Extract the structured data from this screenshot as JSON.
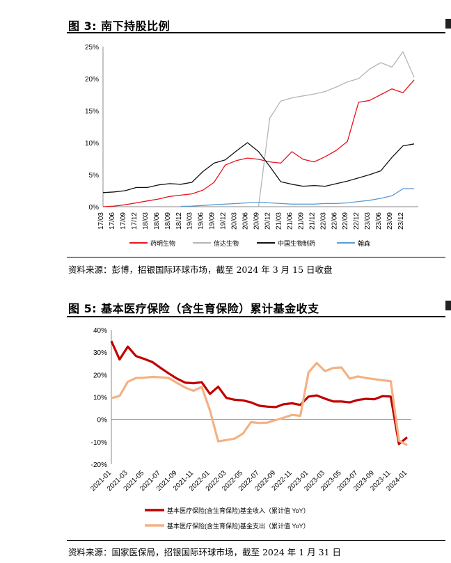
{
  "fig3": {
    "title": "图 3: 南下持股比例",
    "source": "资料来源：彭博，招银国际环球市场，截至 2024 年 3 月 15 日收盘"
  },
  "fig5": {
    "title": "图 5: 基本医疗保险（含生育保险）累计基金收支",
    "source": "资料来源：国家医保局，招银国际环球市场，截至 2024 年 1 月 31 日"
  },
  "chart_data": [
    {
      "type": "line",
      "title": "",
      "ylim": [
        0,
        25
      ],
      "yticks": [
        "0%",
        "5%",
        "10%",
        "15%",
        "20%",
        "25%"
      ],
      "x": [
        "17/03",
        "17/06",
        "17/09",
        "17/12",
        "18/03",
        "18/06",
        "18/09",
        "18/12",
        "19/03",
        "19/06",
        "19/09",
        "19/12",
        "20/03",
        "20/06",
        "20/09",
        "20/12",
        "21/03",
        "21/06",
        "21/09",
        "21/12",
        "22/03",
        "22/06",
        "22/09",
        "22/12",
        "23/03",
        "23/06",
        "23/09",
        "23/12",
        "24/03"
      ],
      "xticks": [
        "17/03",
        "17/06",
        "17/09",
        "17/12",
        "18/03",
        "18/06",
        "18/09",
        "18/12",
        "19/03",
        "19/06",
        "19/09",
        "19/12",
        "20/03",
        "20/06",
        "20/09",
        "20/12",
        "21/03",
        "21/06",
        "21/09",
        "21/12",
        "22/03",
        "22/06",
        "22/09",
        "22/12",
        "23/03",
        "23/06",
        "23/09",
        "23/12"
      ],
      "legend_position": "bottom",
      "series": [
        {
          "name": "药明生物",
          "color": "#e8121b",
          "values": [
            0,
            0.1,
            0.3,
            0.6,
            0.9,
            1.2,
            1.6,
            1.8,
            2.0,
            2.6,
            3.8,
            6.5,
            7.2,
            7.6,
            7.4,
            7.0,
            6.8,
            8.6,
            7.4,
            7.0,
            7.8,
            8.8,
            10.2,
            16.3,
            16.6,
            17.5,
            18.4,
            17.8,
            19.8
          ]
        },
        {
          "name": "信达生物",
          "color": "#b5b5b5",
          "values": [
            null,
            null,
            null,
            null,
            null,
            null,
            null,
            null,
            null,
            null,
            null,
            null,
            null,
            null,
            0,
            13.8,
            16.5,
            17.0,
            17.3,
            17.6,
            18.0,
            18.7,
            19.5,
            20.0,
            21.5,
            22.5,
            21.8,
            24.2,
            20.2
          ]
        },
        {
          "name": "中国生物制药",
          "color": "#111111",
          "values": [
            2.2,
            2.3,
            2.5,
            3.0,
            3.0,
            3.4,
            3.6,
            3.5,
            3.8,
            5.5,
            6.8,
            7.3,
            8.7,
            10.0,
            8.6,
            6.3,
            3.9,
            3.5,
            3.2,
            3.3,
            3.2,
            3.6,
            4.0,
            4.5,
            5.0,
            5.6,
            7.7,
            9.5,
            9.8
          ]
        },
        {
          "name": "翰森",
          "color": "#5b9bd5",
          "values": [
            null,
            null,
            null,
            null,
            null,
            null,
            null,
            0.05,
            0.1,
            0.2,
            0.3,
            0.4,
            0.5,
            0.6,
            0.7,
            0.6,
            0.5,
            0.4,
            0.4,
            0.4,
            0.5,
            0.5,
            0.6,
            0.8,
            1.0,
            1.3,
            1.7,
            2.8,
            2.8
          ]
        }
      ]
    },
    {
      "type": "line",
      "title": "",
      "ylim": [
        -20,
        40
      ],
      "yticks": [
        "-20%",
        "-10%",
        "0%",
        "10%",
        "20%",
        "30%",
        "40%"
      ],
      "x": [
        "2021-01",
        "2021-02",
        "2021-03",
        "2021-04",
        "2021-05",
        "2021-06",
        "2021-07",
        "2021-08",
        "2021-09",
        "2021-10",
        "2021-11",
        "2021-12",
        "2022-01",
        "2022-02",
        "2022-03",
        "2022-04",
        "2022-05",
        "2022-06",
        "2022-07",
        "2022-08",
        "2022-09",
        "2022-10",
        "2022-11",
        "2022-12",
        "2023-01",
        "2023-02",
        "2023-03",
        "2023-04",
        "2023-05",
        "2023-06",
        "2023-07",
        "2023-08",
        "2023-09",
        "2023-10",
        "2023-11",
        "2023-12",
        "2024-01"
      ],
      "xticks": [
        "2021-01",
        "2021-03",
        "2021-05",
        "2021-07",
        "2021-09",
        "2021-11",
        "2022-01",
        "2022-03",
        "2022-05",
        "2022-07",
        "2022-09",
        "2022-11",
        "2023-01",
        "2023-03",
        "2023-05",
        "2023-07",
        "2023-09",
        "2023-11",
        "2024-01"
      ],
      "legend_position": "bottom",
      "series": [
        {
          "name": "基本医疗保险(含生育保险)基金收入（累计值 YoY）",
          "color": "#c00000",
          "values": [
            35.0,
            26.8,
            32.5,
            28.3,
            27.0,
            25.6,
            23.0,
            20.5,
            18.2,
            16.4,
            16.2,
            16.6,
            11.4,
            14.6,
            9.6,
            8.8,
            8.5,
            7.6,
            6.1,
            5.7,
            5.5,
            6.8,
            7.2,
            6.5,
            10.2,
            10.7,
            9.3,
            8.0,
            8.0,
            7.6,
            8.7,
            9.2,
            9.0,
            10.4,
            10.2,
            -11.0,
            -8.0
          ]
        },
        {
          "name": "基本医疗保险(含生育保险)基金支出（累计值 YoY）",
          "color": "#f4b183",
          "values": [
            9.5,
            10.5,
            16.8,
            18.5,
            18.6,
            19.0,
            18.8,
            18.5,
            16.3,
            14.2,
            12.8,
            14.5,
            4.0,
            -9.8,
            -9.2,
            -8.6,
            -6.4,
            -1.2,
            -1.6,
            -1.4,
            -0.3,
            0.8,
            2.0,
            1.6,
            21.0,
            25.2,
            21.6,
            23.0,
            23.2,
            18.2,
            19.2,
            18.5,
            18.0,
            17.5,
            17.1,
            -9.5,
            -11.5
          ]
        }
      ]
    }
  ]
}
